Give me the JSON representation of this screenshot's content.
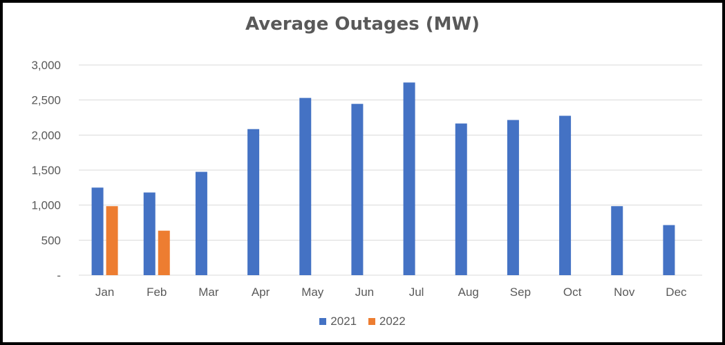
{
  "chart_data": {
    "type": "bar",
    "title": "Average Outages (MW)",
    "xlabel": "",
    "ylabel": "",
    "categories": [
      "Jan",
      "Feb",
      "Mar",
      "Apr",
      "May",
      "Jun",
      "Jul",
      "Aug",
      "Sep",
      "Oct",
      "Nov",
      "Dec"
    ],
    "series": [
      {
        "name": "2021",
        "color": "#4472C4",
        "values": [
          1250,
          1180,
          1475,
          2085,
          2530,
          2445,
          2750,
          2165,
          2215,
          2275,
          985,
          715
        ]
      },
      {
        "name": "2022",
        "color": "#ED7D31",
        "values": [
          985,
          635,
          null,
          null,
          null,
          null,
          null,
          null,
          null,
          null,
          null,
          null
        ]
      }
    ],
    "ylim": [
      0,
      3000
    ],
    "yticks": [
      0,
      500,
      1000,
      1500,
      2000,
      2500,
      3000
    ],
    "ytick_labels": [
      "-",
      "500",
      "1,000",
      "1,500",
      "2,000",
      "2,500",
      "3,000"
    ],
    "grid": true,
    "legend_position": "bottom"
  }
}
